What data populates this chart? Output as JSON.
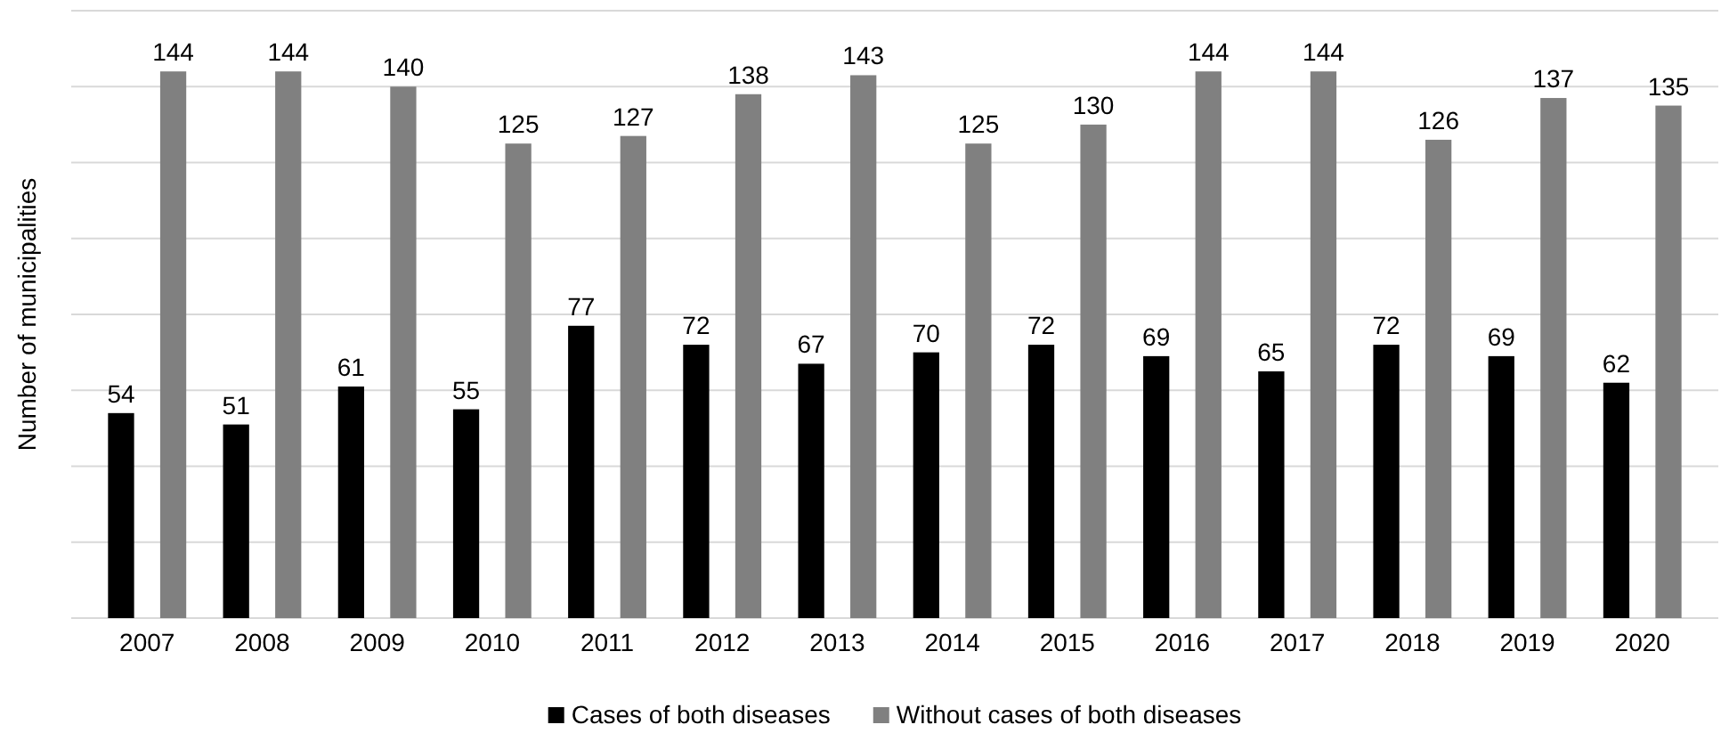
{
  "chart_data": {
    "type": "bar",
    "ylabel": "Number of municipalities",
    "categories": [
      "2007",
      "2008",
      "2009",
      "2010",
      "2011",
      "2012",
      "2013",
      "2014",
      "2015",
      "2016",
      "2017",
      "2018",
      "2019",
      "2020"
    ],
    "series": [
      {
        "name": "Cases of both diseases",
        "color": "#000000",
        "values": [
          54,
          51,
          61,
          55,
          77,
          72,
          67,
          70,
          72,
          69,
          65,
          72,
          69,
          62
        ]
      },
      {
        "name": "Without cases of both diseases",
        "color": "#808080",
        "values": [
          144,
          144,
          140,
          125,
          127,
          138,
          143,
          125,
          130,
          144,
          144,
          126,
          137,
          135
        ]
      }
    ],
    "ylim": [
      0,
      160
    ],
    "yticks": [
      {
        "value": 0,
        "label": null
      },
      {
        "value": 20,
        "label": null
      },
      {
        "value": 40,
        "label": null
      },
      {
        "value": 60,
        "label": null
      },
      {
        "value": 80,
        "label": null
      },
      {
        "value": 100,
        "label": null
      },
      {
        "value": 120,
        "label": null
      },
      {
        "value": 140,
        "label": null
      },
      {
        "value": 160,
        "label": null
      }
    ],
    "tick_labels": "x",
    "grid": "y",
    "legend": "bottom",
    "data_labels": true
  }
}
